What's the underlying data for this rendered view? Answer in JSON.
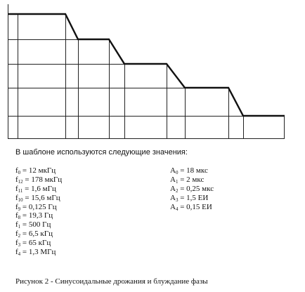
{
  "intro_text": "В шаблоне используются следующие значения:",
  "frequencies": [
    {
      "sym": "f",
      "sub": "0",
      "val": " = 12 мкГц"
    },
    {
      "sym": "f",
      "sub": "12",
      "val": " = 178 мкГц"
    },
    {
      "sym": "f",
      "sub": "11",
      "val": " = 1,6 мГц"
    },
    {
      "sym": "f",
      "sub": "10",
      "val": " = 15,6 мГц"
    },
    {
      "sym": "f",
      "sub": "9",
      "val": " = 0,125 Гц"
    },
    {
      "sym": "f",
      "sub": "8",
      "val": " = 19,3 Гц"
    },
    {
      "sym": "f",
      "sub": "1",
      "val": " = 500 Гц"
    },
    {
      "sym": "f",
      "sub": "2",
      "val": " = 6,5 кГц"
    },
    {
      "sym": "f",
      "sub": "3",
      "val": " = 65 кГц"
    },
    {
      "sym": "f",
      "sub": "4",
      "val": " = 1,3 МГц"
    }
  ],
  "amplitudes": [
    {
      "sym": "A",
      "sub": "0",
      "val": " = 18 мкс"
    },
    {
      "sym": "A",
      "sub": "1",
      "val": " = 2 мкс"
    },
    {
      "sym": "A",
      "sub": "2",
      "val": " = 0,25 мкс"
    },
    {
      "sym": "A",
      "sub": "3",
      "val": " = 1,5 ЕИ"
    },
    {
      "sym": "A",
      "sub": "4",
      "val": " = 0,15 ЕИ"
    }
  ],
  "caption": "Рисунок 2 - Синусоидальные дрожания и блуждание фазы",
  "colors": {
    "line": "#111111",
    "grid": "#222222"
  }
}
